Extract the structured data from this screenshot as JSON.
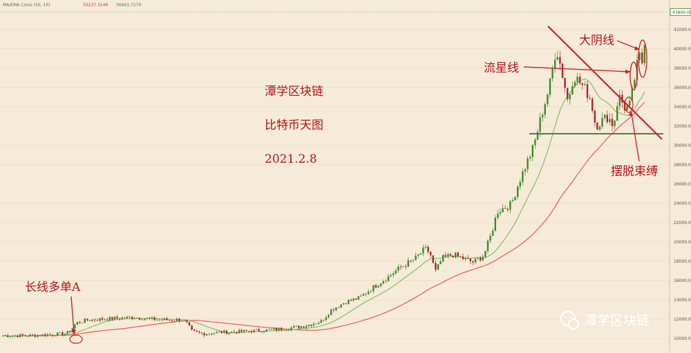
{
  "indicator": {
    "name": "MA/EMA Cross (50, 15)",
    "value_a": "33237.3146",
    "value_b": "36863.7279",
    "color_a": "#d03a2c",
    "color_b": "#3c9a2c"
  },
  "annotations": {
    "title": "潭学区块链",
    "subtitle": "比特币天图",
    "date": "2021.2.8",
    "big_bear": "大阴线",
    "shooting_star": "流星线",
    "breakout": "摆脱束缚",
    "long_buy": "长线多单A",
    "watermark": "潭学区块链"
  },
  "chart_data": {
    "type": "candlestick",
    "ylim": [
      9000,
      44200
    ],
    "y_ticks": [
      10000,
      12000,
      14000,
      16000,
      18000,
      20000,
      22000,
      24000,
      26000,
      28000,
      30000,
      32000,
      34000,
      36000,
      38000,
      40000,
      42000
    ],
    "y_tick_labels": [
      "10000.00",
      "12000.00",
      "14000.00",
      "16000.00",
      "18000.00",
      "20000.00",
      "22000.00",
      "24000.00",
      "26000.00",
      "28000.00",
      "30000.00",
      "32000.00",
      "34000.00",
      "36000.00",
      "38000.00",
      "40000.00",
      "42000.00"
    ],
    "last_price_label": "43800.00",
    "last_price": 43800,
    "up_color": "#3c8a2a",
    "down_color": "#a8282a",
    "ema_color": "#7fc06a",
    "ma_color": "#e85a5a",
    "anchors": [
      [
        0,
        10300
      ],
      [
        40,
        10300
      ],
      [
        70,
        10400
      ],
      [
        95,
        10500
      ],
      [
        102,
        10800
      ],
      [
        110,
        11600
      ],
      [
        125,
        11900
      ],
      [
        145,
        12000
      ],
      [
        170,
        12100
      ],
      [
        195,
        12200
      ],
      [
        215,
        12000
      ],
      [
        235,
        11950
      ],
      [
        250,
        11900
      ],
      [
        262,
        12000
      ],
      [
        270,
        11600
      ],
      [
        278,
        10700
      ],
      [
        295,
        10500
      ],
      [
        320,
        10650
      ],
      [
        345,
        10700
      ],
      [
        370,
        10800
      ],
      [
        395,
        10900
      ],
      [
        420,
        11100
      ],
      [
        440,
        11300
      ],
      [
        465,
        11800
      ],
      [
        480,
        13000
      ],
      [
        500,
        13800
      ],
      [
        520,
        14200
      ],
      [
        540,
        15300
      ],
      [
        560,
        16300
      ],
      [
        580,
        17400
      ],
      [
        600,
        18200
      ],
      [
        615,
        19300
      ],
      [
        622,
        18900
      ],
      [
        630,
        16900
      ],
      [
        640,
        18300
      ],
      [
        655,
        18700
      ],
      [
        670,
        18300
      ],
      [
        685,
        17900
      ],
      [
        700,
        18600
      ],
      [
        710,
        20600
      ],
      [
        720,
        23200
      ],
      [
        740,
        23900
      ],
      [
        750,
        26000
      ],
      [
        760,
        27800
      ],
      [
        772,
        29800
      ],
      [
        785,
        33500
      ],
      [
        795,
        36000
      ],
      [
        805,
        40200
      ],
      [
        815,
        37000
      ],
      [
        822,
        34500
      ],
      [
        830,
        37300
      ],
      [
        845,
        36000
      ],
      [
        855,
        34800
      ],
      [
        862,
        32000
      ],
      [
        870,
        32500
      ],
      [
        880,
        33000
      ],
      [
        888,
        32000
      ],
      [
        895,
        35200
      ],
      [
        905,
        33800
      ],
      [
        912,
        34200
      ],
      [
        918,
        36800
      ],
      [
        925,
        39300
      ],
      [
        930,
        38500
      ],
      [
        936,
        43800
      ]
    ]
  }
}
